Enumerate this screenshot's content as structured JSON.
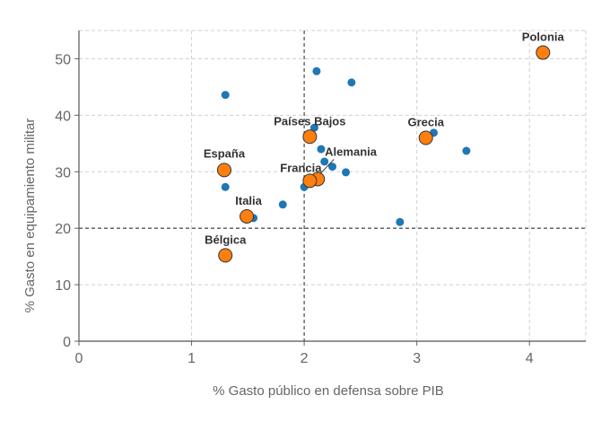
{
  "chart_data": {
    "type": "scatter",
    "xlabel": "% Gasto público en defensa sobre PIB",
    "ylabel": "% Gasto en equipamiento militar",
    "xlim": [
      0,
      4.5
    ],
    "ylim": [
      0,
      55
    ],
    "xticks": [
      0,
      1,
      2,
      3,
      4
    ],
    "yticks": [
      0,
      10,
      20,
      30,
      40,
      50
    ],
    "grid": true,
    "reference_lines": {
      "x": 2,
      "y": 20
    },
    "colors": {
      "other": "#1f77b4",
      "highlight": "#ff7f0e",
      "highlight_edge": "#333333"
    },
    "series": [
      {
        "points": [
          {
            "x": 1.3,
            "y": 43.6
          },
          {
            "x": 2.11,
            "y": 47.8
          },
          {
            "x": 2.42,
            "y": 45.8
          },
          {
            "x": 2.09,
            "y": 37.8
          },
          {
            "x": 3.15,
            "y": 36.9
          },
          {
            "x": 3.44,
            "y": 33.7
          },
          {
            "x": 2.15,
            "y": 34.0
          },
          {
            "x": 2.18,
            "y": 31.8
          },
          {
            "x": 2.25,
            "y": 30.9
          },
          {
            "x": 2.37,
            "y": 29.9
          },
          {
            "x": 2.0,
            "y": 27.3
          },
          {
            "x": 1.3,
            "y": 27.3
          },
          {
            "x": 1.81,
            "y": 24.2
          },
          {
            "x": 1.55,
            "y": 21.8
          },
          {
            "x": 2.85,
            "y": 21.1
          }
        ]
      },
      {
        "points": [
          {
            "label": "Polonia",
            "x": 4.12,
            "y": 51.1
          },
          {
            "label": "Grecia",
            "x": 3.08,
            "y": 36.0
          },
          {
            "label": "Países Bajos",
            "x": 2.05,
            "y": 36.2
          },
          {
            "label": "Alemania",
            "x": 2.12,
            "y": 28.7
          },
          {
            "label": "Francia",
            "x": 2.05,
            "y": 28.4
          },
          {
            "label": "España",
            "x": 1.29,
            "y": 30.3
          },
          {
            "label": "Italia",
            "x": 1.49,
            "y": 22.1
          },
          {
            "label": "Bélgica",
            "x": 1.3,
            "y": 15.2
          }
        ]
      }
    ]
  }
}
